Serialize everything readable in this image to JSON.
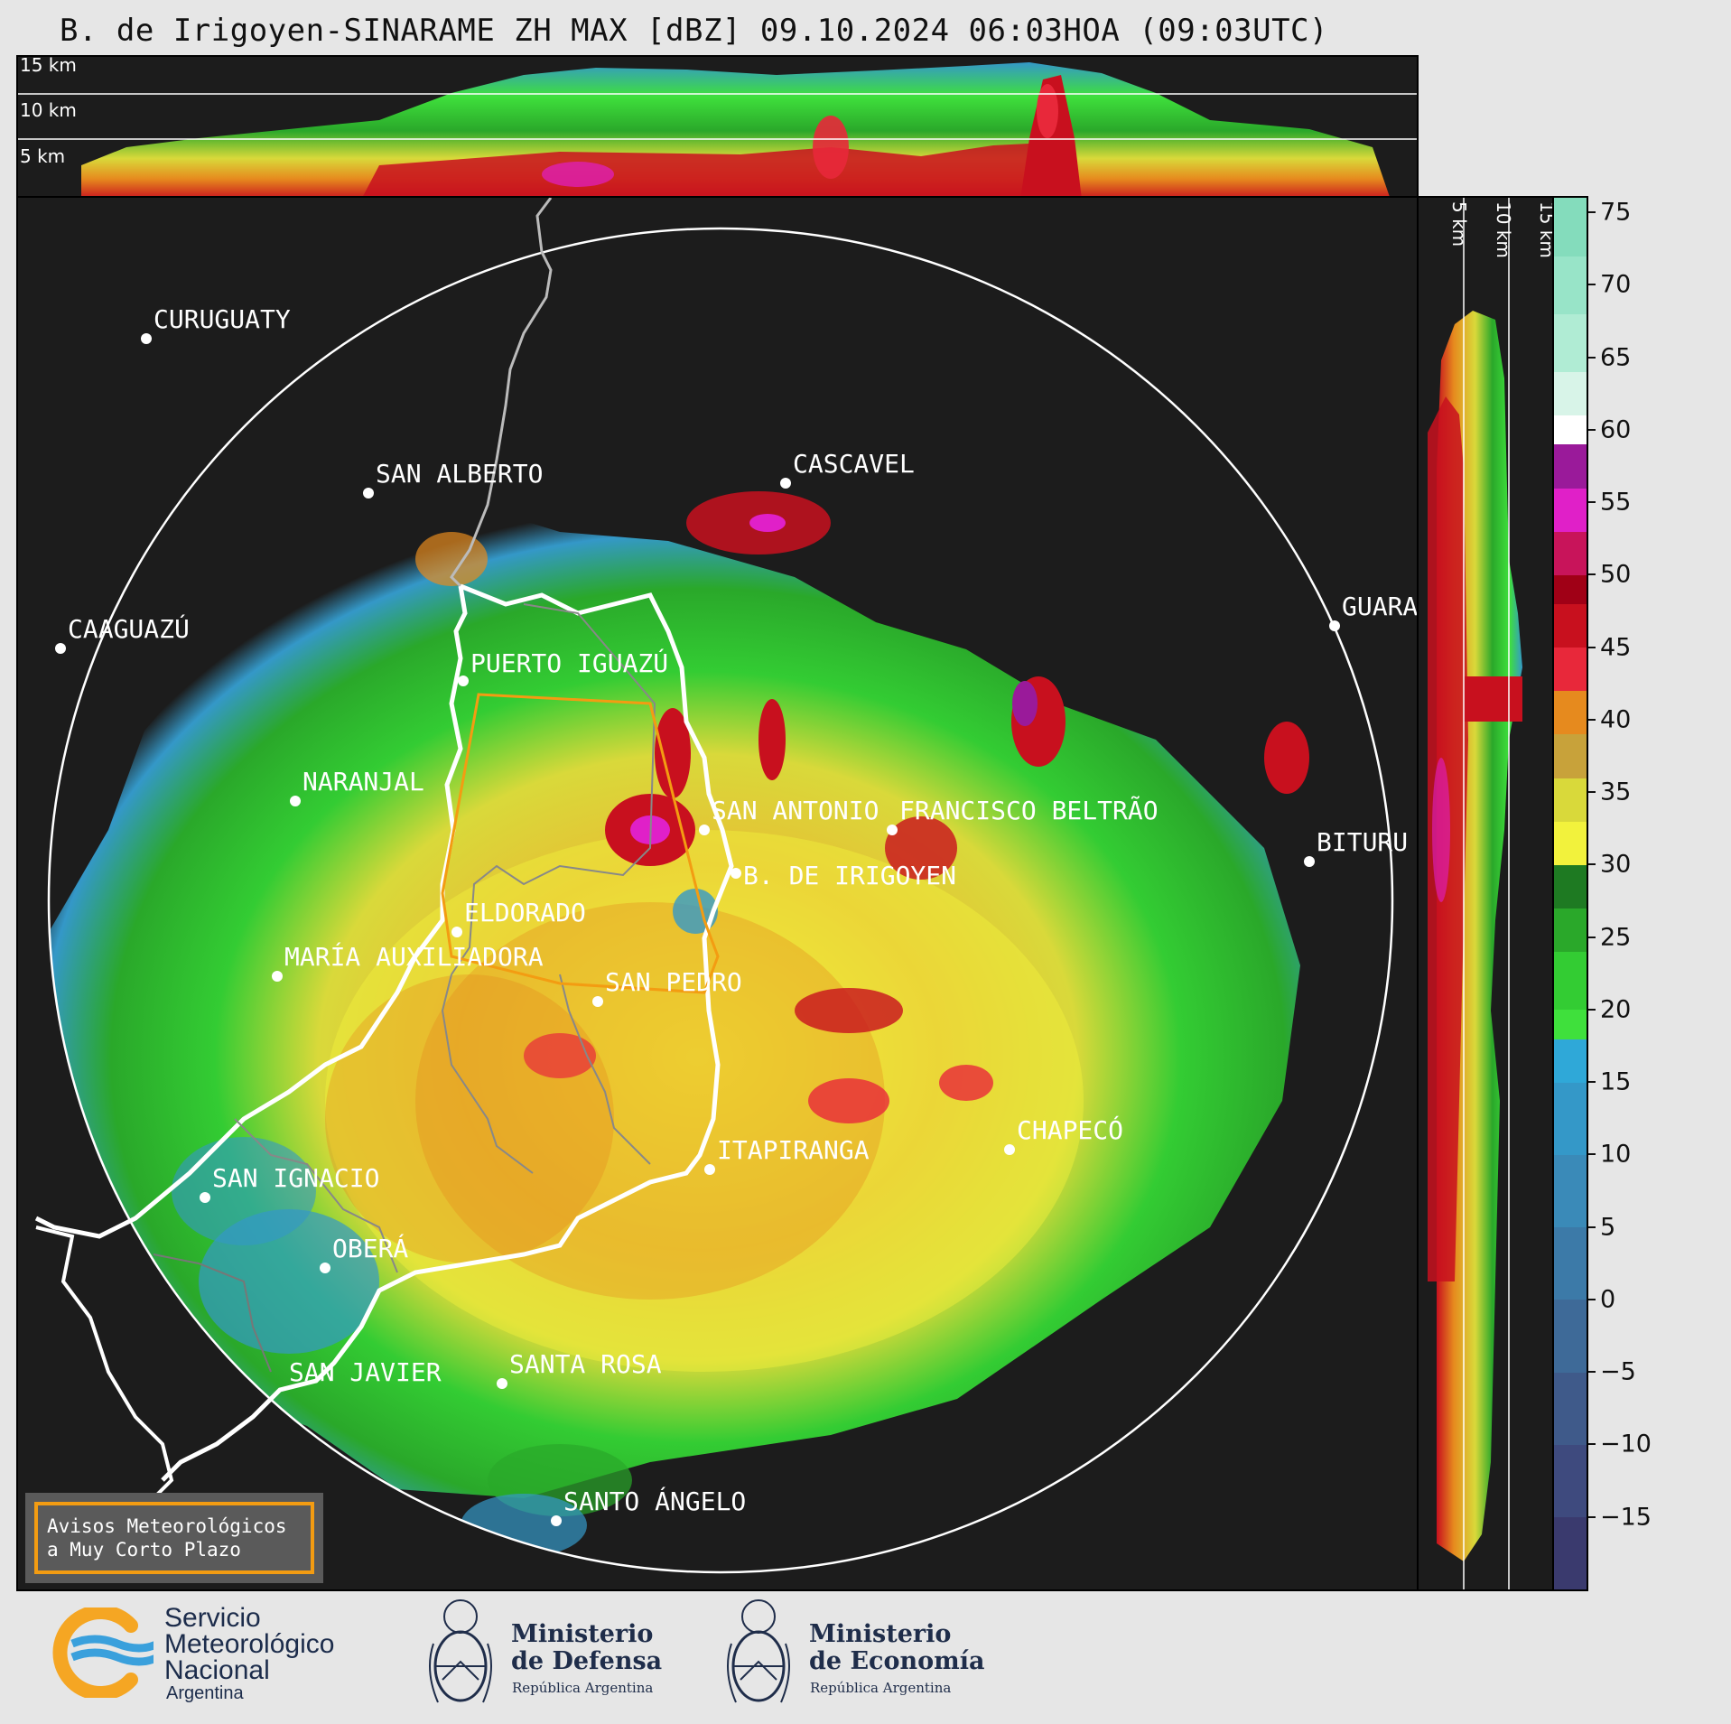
{
  "title": "B. de Irigoyen-SINARAME ZH MAX [dBZ] 09.10.2024 06:03HOA (09:03UTC)",
  "top_panel": {
    "altitude_labels": [
      "15 km",
      "10 km",
      "5 km"
    ]
  },
  "side_panel": {
    "altitude_labels": [
      "5 km",
      "10 km",
      "15 km"
    ]
  },
  "colorbar": {
    "unit": "dBZ",
    "range": [
      -20,
      76
    ],
    "ticks": [
      "75",
      "70",
      "65",
      "60",
      "55",
      "50",
      "45",
      "40",
      "35",
      "30",
      "25",
      "20",
      "15",
      "10",
      "5",
      "0",
      "−5",
      "−10",
      "−15"
    ],
    "tick_values": [
      75,
      70,
      65,
      60,
      55,
      50,
      45,
      40,
      35,
      30,
      25,
      20,
      15,
      10,
      5,
      0,
      -5,
      -10,
      -15
    ],
    "bands": [
      {
        "from": -20,
        "to": -15,
        "color": "#3a3a6e"
      },
      {
        "from": -15,
        "to": -10,
        "color": "#3e4a7e"
      },
      {
        "from": -10,
        "to": -5,
        "color": "#3f5a8a"
      },
      {
        "from": -5,
        "to": 0,
        "color": "#3e6a98"
      },
      {
        "from": 0,
        "to": 5,
        "color": "#3c7aa8"
      },
      {
        "from": 5,
        "to": 10,
        "color": "#3a8ab8"
      },
      {
        "from": 10,
        "to": 15,
        "color": "#3498c8"
      },
      {
        "from": 15,
        "to": 18,
        "color": "#2fa8d8"
      },
      {
        "from": 18,
        "to": 20,
        "color": "#3fe03c"
      },
      {
        "from": 20,
        "to": 24,
        "color": "#33cc33"
      },
      {
        "from": 24,
        "to": 27,
        "color": "#2aa82a"
      },
      {
        "from": 27,
        "to": 30,
        "color": "#1e7a22"
      },
      {
        "from": 30,
        "to": 33,
        "color": "#f2f23c"
      },
      {
        "from": 33,
        "to": 36,
        "color": "#d9d93a"
      },
      {
        "from": 36,
        "to": 39,
        "color": "#c8a23a"
      },
      {
        "from": 39,
        "to": 42,
        "color": "#e68a1e"
      },
      {
        "from": 42,
        "to": 45,
        "color": "#e8283a"
      },
      {
        "from": 45,
        "to": 48,
        "color": "#c8101e"
      },
      {
        "from": 48,
        "to": 50,
        "color": "#a00016"
      },
      {
        "from": 50,
        "to": 53,
        "color": "#c8145a"
      },
      {
        "from": 53,
        "to": 56,
        "color": "#e020c8"
      },
      {
        "from": 56,
        "to": 59,
        "color": "#9a1a9a"
      },
      {
        "from": 59,
        "to": 61,
        "color": "#ffffff"
      },
      {
        "from": 61,
        "to": 64,
        "color": "#d8f4e8"
      },
      {
        "from": 64,
        "to": 68,
        "color": "#b0ecd4"
      },
      {
        "from": 68,
        "to": 72,
        "color": "#98e4c8"
      },
      {
        "from": 72,
        "to": 76,
        "color": "#84dcbc"
      }
    ]
  },
  "cities": [
    {
      "name": "CURUGUATY"
    },
    {
      "name": "SAN ALBERTO"
    },
    {
      "name": "CASCAVEL"
    },
    {
      "name": "CAAGUAZÚ"
    },
    {
      "name": "GUARA"
    },
    {
      "name": "PUERTO IGUAZÚ"
    },
    {
      "name": "NARANJAL"
    },
    {
      "name": "SAN ANTONIO"
    },
    {
      "name": "FRANCISCO BELTRÃO"
    },
    {
      "name": "BITURU"
    },
    {
      "name": "B. DE IRIGOYEN"
    },
    {
      "name": "ELDORADO"
    },
    {
      "name": "MARÍA AUXILIADORA"
    },
    {
      "name": "SAN PEDRO"
    },
    {
      "name": "CHAPECÓ"
    },
    {
      "name": "ITAPIRANGA"
    },
    {
      "name": "SAN IGNACIO"
    },
    {
      "name": "OBERÁ"
    },
    {
      "name": "SAN JAVIER"
    },
    {
      "name": "SANTA ROSA"
    },
    {
      "name": "SANTO ÁNGELO"
    }
  ],
  "avisos": {
    "line1": "Avisos Meteorológicos",
    "line2": "a Muy Corto Plazo"
  },
  "logos": {
    "smn_name": "Servicio\nMeteorológico\nNacional",
    "smn_country": "Argentina",
    "defensa_line1": "Ministerio",
    "defensa_line2": "de Defensa",
    "defensa_sub": "República Argentina",
    "economia_line1": "Ministerio",
    "economia_line2": "de Economía",
    "economia_sub": "República Argentina"
  },
  "colors": {
    "smn_orange": "#f5a623",
    "smn_blue": "#3aa0dc",
    "avisos_border": "#f39c12"
  }
}
